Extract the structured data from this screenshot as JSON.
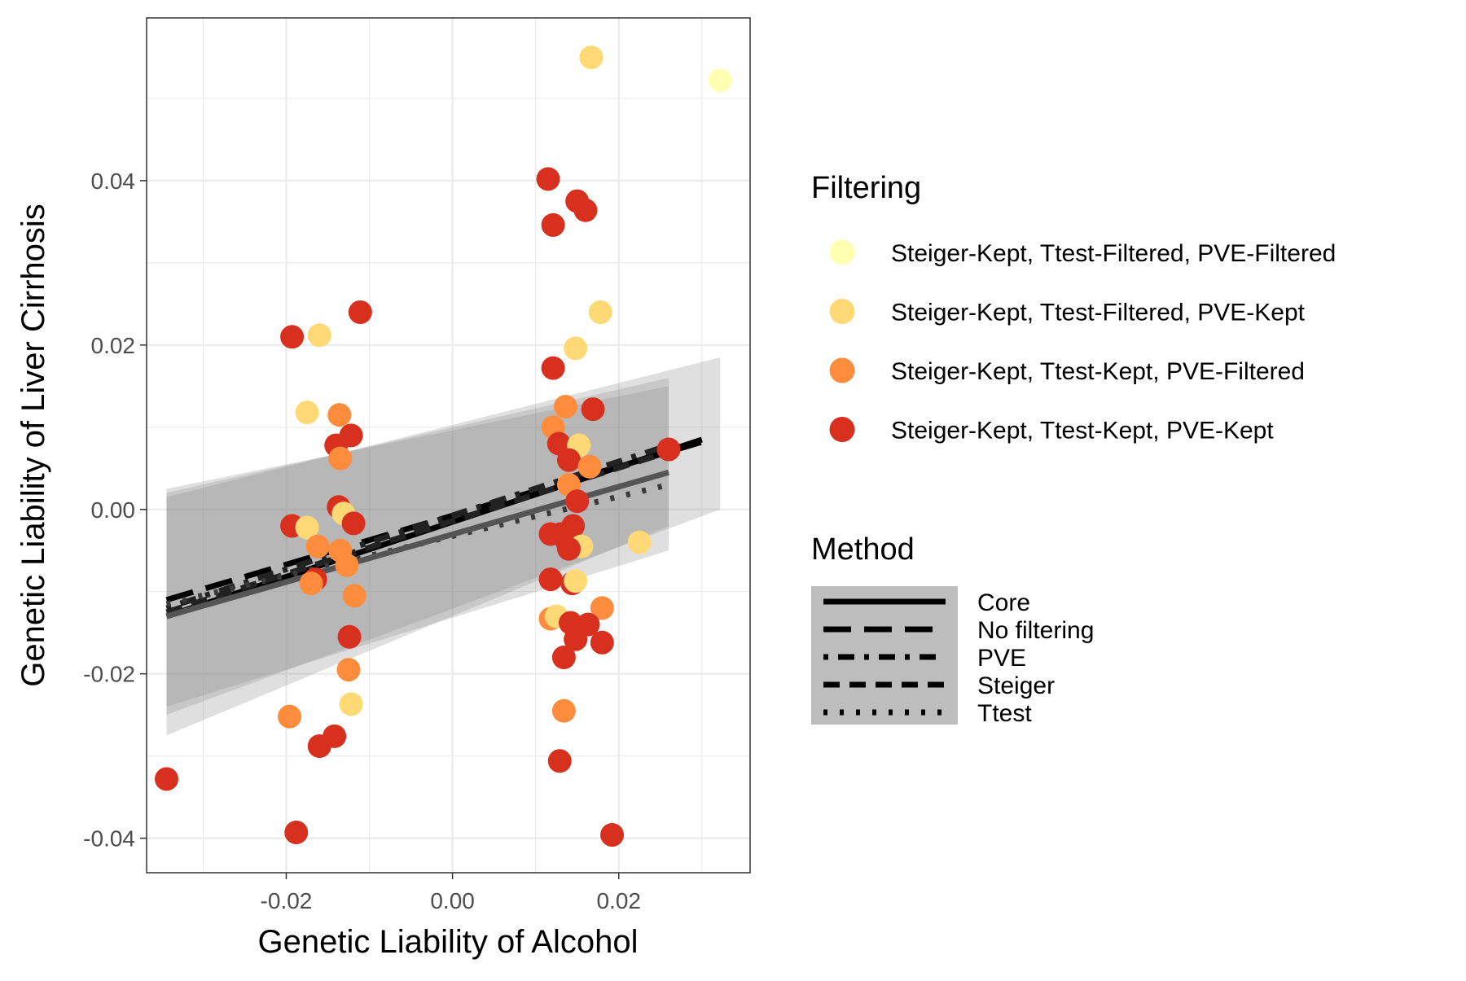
{
  "chart_data": {
    "type": "scatter",
    "xlabel": "Genetic Liability of Alcohol",
    "ylabel": "Genetic Liability of Liver Cirrhosis",
    "xlim": [
      -0.0368,
      0.0358
    ],
    "ylim": [
      -0.0442,
      0.0598
    ],
    "x_ticks": [
      -0.02,
      0.0,
      0.02
    ],
    "x_tick_labels": [
      "-0.02",
      "0.00",
      "0.02"
    ],
    "y_ticks": [
      -0.04,
      -0.02,
      0.0,
      0.02,
      0.04
    ],
    "y_tick_labels": [
      "-0.04",
      "-0.02",
      "0.00",
      "0.02",
      "0.04"
    ],
    "grid": true,
    "legend_position": "right",
    "filtering_legend": {
      "title": "Filtering",
      "items": [
        {
          "label": "Steiger-Kept, Ttest-Filtered, PVE-Filtered",
          "color": "#FFFFB2"
        },
        {
          "label": "Steiger-Kept, Ttest-Filtered, PVE-Kept",
          "color": "#FED976"
        },
        {
          "label": "Steiger-Kept, Ttest-Kept, PVE-Filtered",
          "color": "#FD8D3C"
        },
        {
          "label": "Steiger-Kept, Ttest-Kept, PVE-Kept",
          "color": "#D7301F"
        }
      ]
    },
    "method_legend": {
      "title": "Method",
      "items": [
        {
          "label": "Core",
          "dash": "solid"
        },
        {
          "label": "No filtering",
          "dash": "longdash"
        },
        {
          "label": "PVE",
          "dash": "dotdash"
        },
        {
          "label": "Steiger",
          "dash": "dashed"
        },
        {
          "label": "Ttest",
          "dash": "dotted"
        }
      ]
    },
    "points": [
      {
        "x": 0.0167,
        "y": 0.055,
        "g": 1
      },
      {
        "x": 0.0322,
        "y": 0.0522,
        "g": 0
      },
      {
        "x": 0.0115,
        "y": 0.0402,
        "g": 3
      },
      {
        "x": 0.015,
        "y": 0.0375,
        "g": 3
      },
      {
        "x": 0.016,
        "y": 0.0364,
        "g": 3
      },
      {
        "x": 0.0121,
        "y": 0.0346,
        "g": 3
      },
      {
        "x": 0.0178,
        "y": 0.024,
        "g": 1
      },
      {
        "x": -0.0111,
        "y": 0.024,
        "g": 3
      },
      {
        "x": -0.0193,
        "y": 0.021,
        "g": 3
      },
      {
        "x": -0.016,
        "y": 0.0212,
        "g": 1
      },
      {
        "x": 0.0148,
        "y": 0.0196,
        "g": 1
      },
      {
        "x": 0.0121,
        "y": 0.0172,
        "g": 3
      },
      {
        "x": 0.0136,
        "y": 0.0125,
        "g": 2
      },
      {
        "x": 0.0169,
        "y": 0.0122,
        "g": 3
      },
      {
        "x": -0.0175,
        "y": 0.0118,
        "g": 1
      },
      {
        "x": -0.0136,
        "y": 0.0115,
        "g": 2
      },
      {
        "x": 0.0121,
        "y": 0.01,
        "g": 2
      },
      {
        "x": -0.0122,
        "y": 0.009,
        "g": 3
      },
      {
        "x": -0.014,
        "y": 0.0078,
        "g": 3
      },
      {
        "x": 0.0128,
        "y": 0.008,
        "g": 3
      },
      {
        "x": 0.0152,
        "y": 0.0078,
        "g": 1
      },
      {
        "x": -0.0135,
        "y": 0.0062,
        "g": 2
      },
      {
        "x": 0.014,
        "y": 0.006,
        "g": 3
      },
      {
        "x": 0.0165,
        "y": 0.0052,
        "g": 2
      },
      {
        "x": 0.026,
        "y": 0.0073,
        "g": 3
      },
      {
        "x": 0.014,
        "y": 0.003,
        "g": 2
      },
      {
        "x": 0.015,
        "y": 0.001,
        "g": 3
      },
      {
        "x": -0.0137,
        "y": 0.0003,
        "g": 3
      },
      {
        "x": -0.0131,
        "y": -0.0005,
        "g": 1
      },
      {
        "x": -0.0119,
        "y": -0.0017,
        "g": 3
      },
      {
        "x": -0.0193,
        "y": -0.002,
        "g": 3
      },
      {
        "x": -0.0175,
        "y": -0.0022,
        "g": 1
      },
      {
        "x": 0.0145,
        "y": -0.002,
        "g": 3
      },
      {
        "x": 0.013,
        "y": -0.003,
        "g": 3
      },
      {
        "x": 0.0118,
        "y": -0.003,
        "g": 3
      },
      {
        "x": 0.0138,
        "y": -0.004,
        "g": 3
      },
      {
        "x": 0.0155,
        "y": -0.0045,
        "g": 1
      },
      {
        "x": 0.0225,
        "y": -0.004,
        "g": 1
      },
      {
        "x": -0.0162,
        "y": -0.0045,
        "g": 2
      },
      {
        "x": -0.0135,
        "y": -0.005,
        "g": 2
      },
      {
        "x": 0.014,
        "y": -0.0048,
        "g": 3
      },
      {
        "x": -0.0127,
        "y": -0.0068,
        "g": 2
      },
      {
        "x": -0.0165,
        "y": -0.0085,
        "g": 3
      },
      {
        "x": -0.017,
        "y": -0.009,
        "g": 2
      },
      {
        "x": 0.0118,
        "y": -0.0085,
        "g": 3
      },
      {
        "x": 0.0144,
        "y": -0.009,
        "g": 3
      },
      {
        "x": 0.0148,
        "y": -0.0087,
        "g": 1
      },
      {
        "x": -0.0118,
        "y": -0.0105,
        "g": 2
      },
      {
        "x": 0.018,
        "y": -0.012,
        "g": 2
      },
      {
        "x": 0.0118,
        "y": -0.0133,
        "g": 2
      },
      {
        "x": 0.0125,
        "y": -0.013,
        "g": 1
      },
      {
        "x": 0.0142,
        "y": -0.0138,
        "g": 3
      },
      {
        "x": 0.0163,
        "y": -0.014,
        "g": 3
      },
      {
        "x": 0.0148,
        "y": -0.0158,
        "g": 3
      },
      {
        "x": 0.018,
        "y": -0.0162,
        "g": 3
      },
      {
        "x": -0.0124,
        "y": -0.0155,
        "g": 3
      },
      {
        "x": 0.0134,
        "y": -0.018,
        "g": 3
      },
      {
        "x": -0.0125,
        "y": -0.0195,
        "g": 2
      },
      {
        "x": -0.0122,
        "y": -0.0237,
        "g": 1
      },
      {
        "x": 0.0134,
        "y": -0.0245,
        "g": 2
      },
      {
        "x": -0.0196,
        "y": -0.0252,
        "g": 2
      },
      {
        "x": -0.0142,
        "y": -0.0276,
        "g": 3
      },
      {
        "x": -0.016,
        "y": -0.0288,
        "g": 3
      },
      {
        "x": 0.0129,
        "y": -0.0306,
        "g": 3
      },
      {
        "x": -0.0344,
        "y": -0.0328,
        "g": 3
      },
      {
        "x": -0.0188,
        "y": -0.0393,
        "g": 3
      },
      {
        "x": 0.0192,
        "y": -0.0396,
        "g": 3
      }
    ],
    "confidence_bands": [
      {
        "x0": -0.0344,
        "x1": 0.026,
        "lo0": -0.0275,
        "lo1": -0.002,
        "hi0": 0.002,
        "hi1": 0.016
      },
      {
        "x0": -0.0344,
        "x1": 0.026,
        "lo0": -0.024,
        "lo1": -0.005,
        "hi0": 0.0025,
        "hi1": 0.015
      },
      {
        "x0": -0.0344,
        "x1": 0.0322,
        "lo0": -0.025,
        "lo1": 0.0,
        "hi0": 0.0015,
        "hi1": 0.0185
      }
    ],
    "fit_lines": [
      {
        "method": "Core",
        "dash": "solid",
        "color": "#000000",
        "x0": -0.0344,
        "x1": 0.03,
        "y0": -0.013,
        "y1": 0.0085
      },
      {
        "method": "No filtering",
        "dash": "longdash",
        "color": "#000000",
        "x0": -0.0344,
        "x1": 0.03,
        "y0": -0.011,
        "y1": 0.0082
      },
      {
        "method": "PVE",
        "dash": "dotdash",
        "color": "#222222",
        "x0": -0.0344,
        "x1": 0.026,
        "y0": -0.012,
        "y1": 0.0078
      },
      {
        "method": "Steiger",
        "dash": "dashed",
        "color": "#222222",
        "x0": -0.0344,
        "x1": 0.026,
        "y0": -0.0125,
        "y1": 0.007
      },
      {
        "method": "Ttest",
        "dash": "dotted",
        "color": "#3a3a3a",
        "x0": -0.0344,
        "x1": 0.026,
        "y0": -0.0115,
        "y1": 0.003
      },
      {
        "method": "",
        "dash": "solid",
        "color": "#555555",
        "x0": -0.0344,
        "x1": 0.026,
        "y0": -0.013,
        "y1": 0.0045
      }
    ]
  }
}
